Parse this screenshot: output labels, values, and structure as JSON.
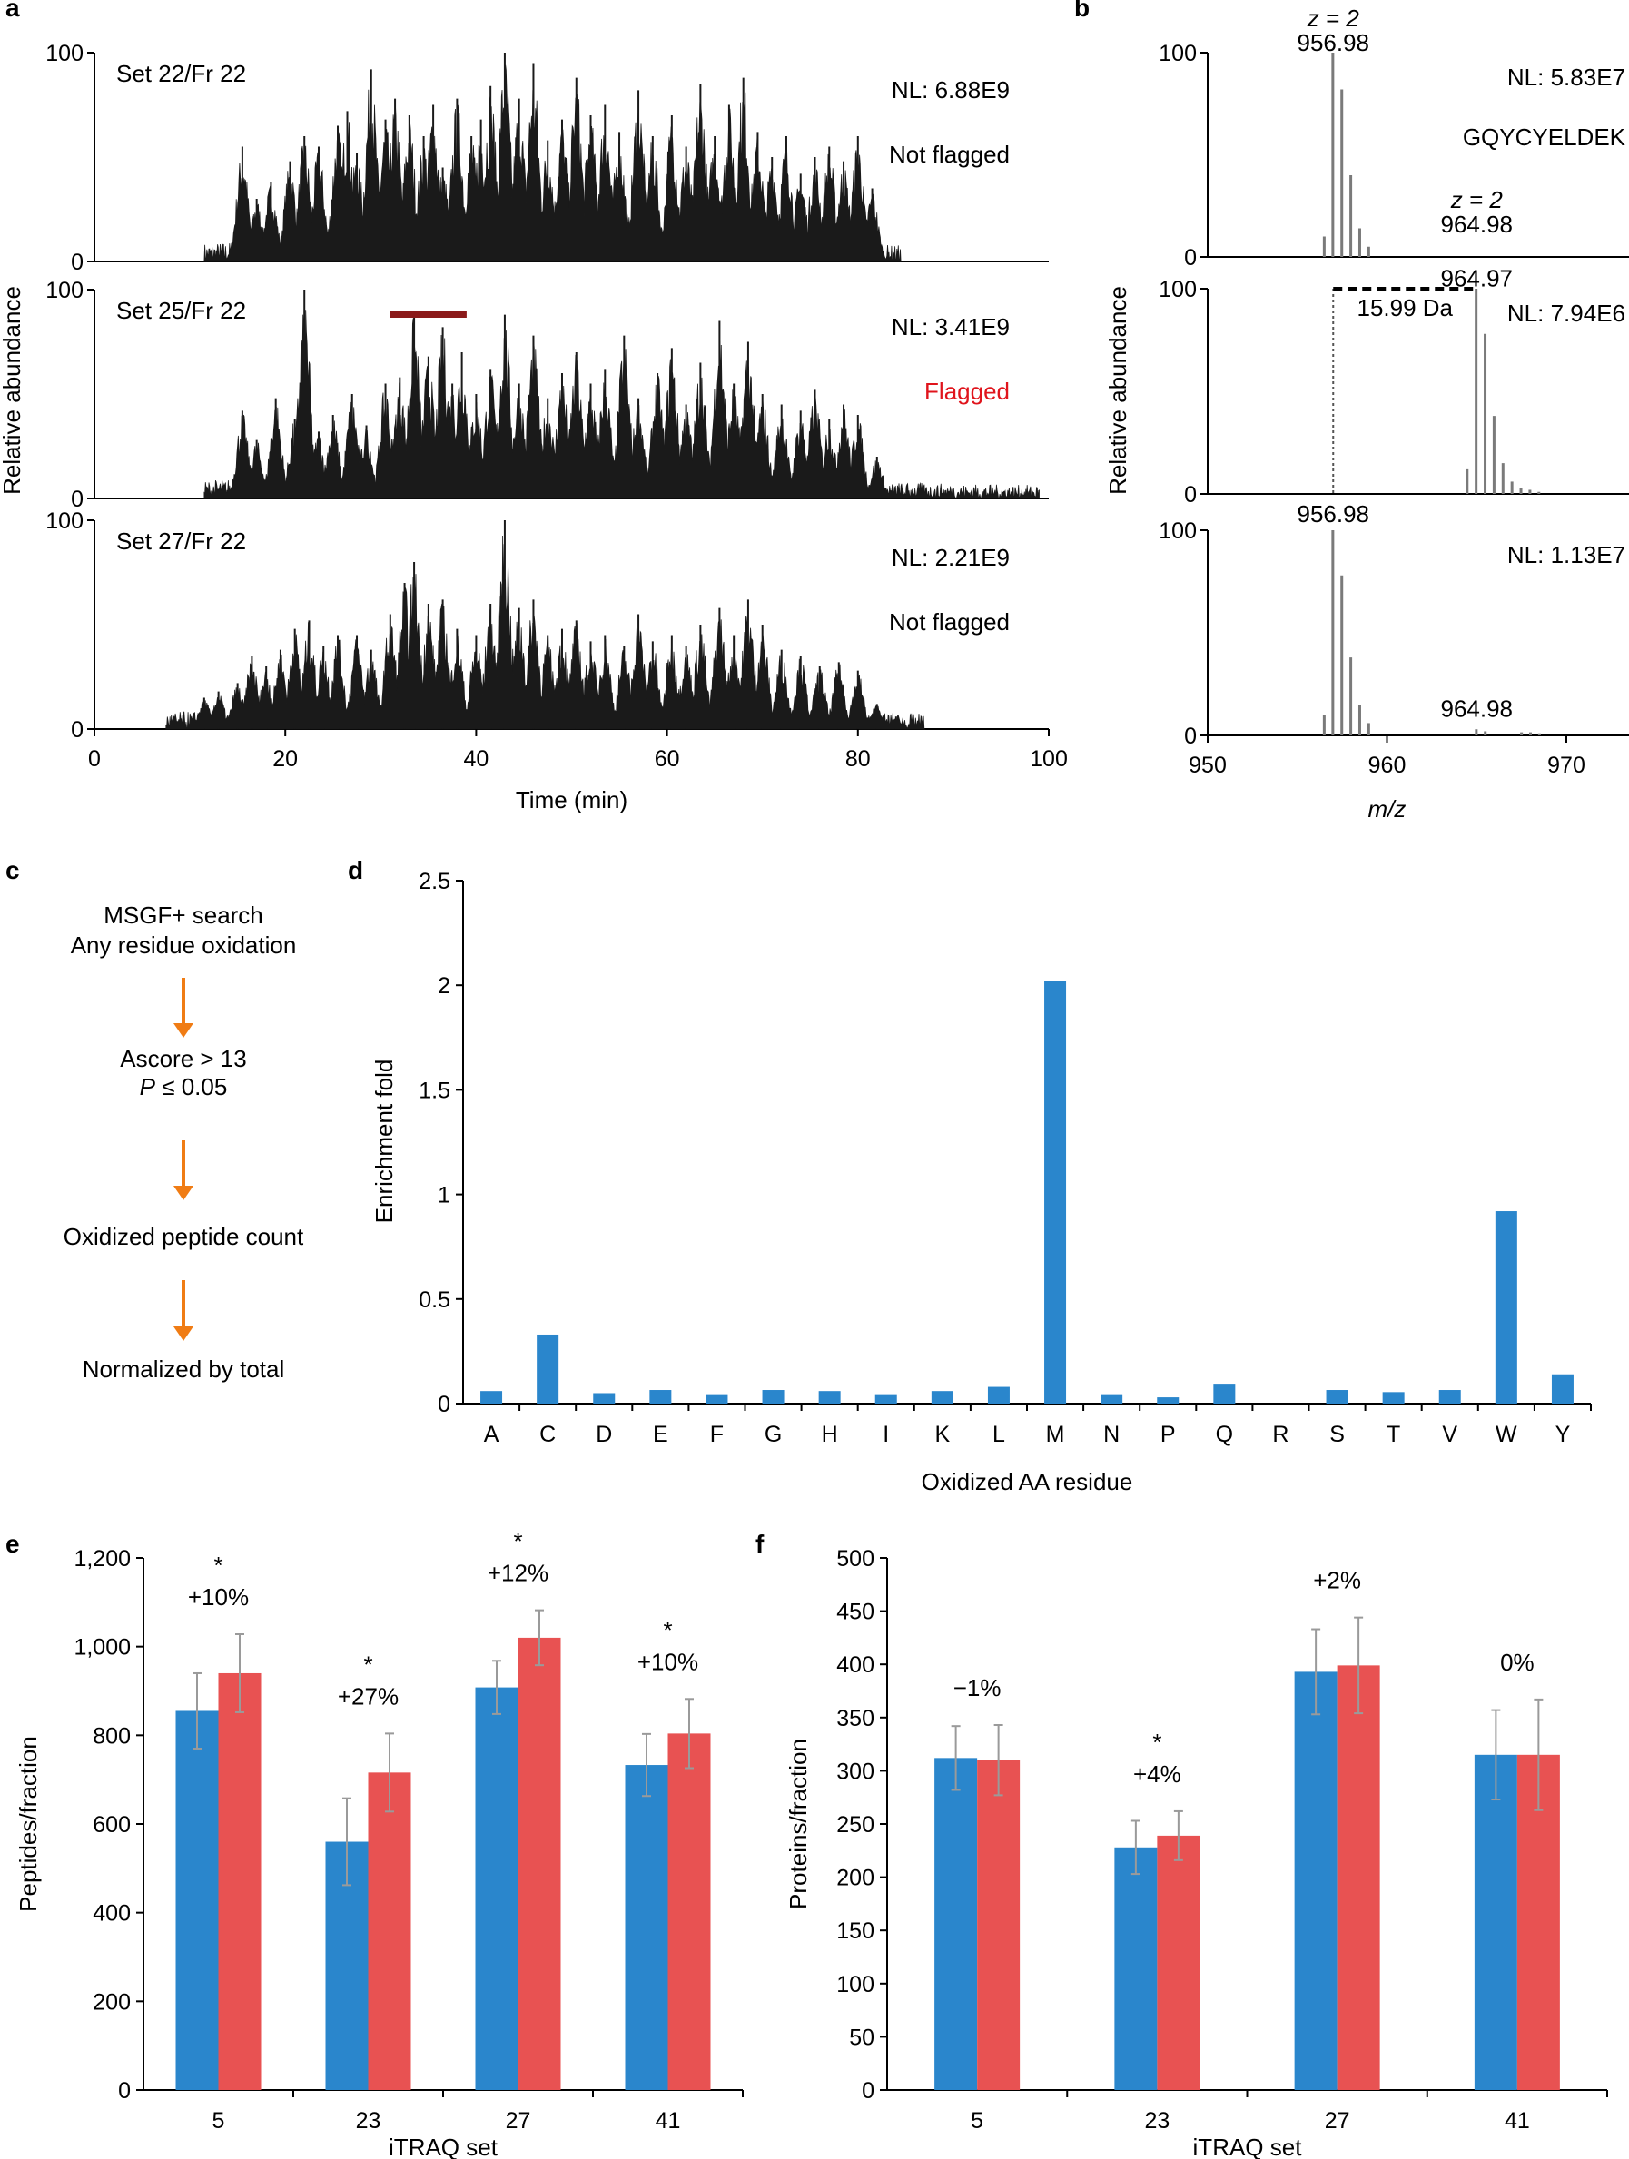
{
  "panels": {
    "a": "a",
    "b": "b",
    "c": "c",
    "d": "d",
    "e": "e",
    "f": "f"
  },
  "colors": {
    "trace": "#1a1a1a",
    "spectrum": "#7a7a7a",
    "flag_bar": "#8b1a1a",
    "flagged_text": "#e0141c",
    "arrow": "#f07c14",
    "blue": "#2a86cc",
    "red": "#e85252",
    "error": "#9a9a9a"
  },
  "chart_data": [
    {
      "id": "a",
      "type": "line",
      "title": "",
      "xlabel": "Time (min)",
      "ylabel": "Relative abundance",
      "xlim": [
        0,
        100
      ],
      "ylim": [
        0,
        100
      ],
      "xticks": [
        "0",
        "20",
        "40",
        "60",
        "80",
        "100"
      ],
      "yticks": [
        "0",
        "100"
      ],
      "traces": [
        {
          "label": "Set 22/Fr 22",
          "nl": "NL: 6.88E9",
          "status": "Not flagged",
          "flagged": false,
          "peaks": [
            [
              15.5,
              55
            ],
            [
              17,
              30
            ],
            [
              18.5,
              38
            ],
            [
              20.5,
              48
            ],
            [
              22,
              60
            ],
            [
              23.5,
              55
            ],
            [
              25.5,
              65
            ],
            [
              26.5,
              72
            ],
            [
              27.5,
              52
            ],
            [
              29,
              92
            ],
            [
              30.5,
              68
            ],
            [
              31.5,
              78
            ],
            [
              33,
              70
            ],
            [
              34.5,
              60
            ],
            [
              35.5,
              75
            ],
            [
              36.5,
              45
            ],
            [
              38,
              78
            ],
            [
              39.5,
              60
            ],
            [
              40.5,
              68
            ],
            [
              41.5,
              84
            ],
            [
              43,
              100
            ],
            [
              44.5,
              78
            ],
            [
              46,
              95
            ],
            [
              47.5,
              58
            ],
            [
              49,
              68
            ],
            [
              50.5,
              88
            ],
            [
              52,
              70
            ],
            [
              53.5,
              75
            ],
            [
              55,
              62
            ],
            [
              57,
              82
            ],
            [
              58.5,
              60
            ],
            [
              60.5,
              70
            ],
            [
              62,
              55
            ],
            [
              63.5,
              85
            ],
            [
              65,
              60
            ],
            [
              66.5,
              75
            ],
            [
              68,
              88
            ],
            [
              69.5,
              62
            ],
            [
              71,
              50
            ],
            [
              72.5,
              60
            ],
            [
              74,
              42
            ],
            [
              75.5,
              50
            ],
            [
              77,
              55
            ],
            [
              78.5,
              48
            ],
            [
              80,
              60
            ],
            [
              81.5,
              35
            ]
          ]
        },
        {
          "label": "Set 25/Fr 22",
          "nl": "NL: 3.41E9",
          "status": "Flagged",
          "flagged": true,
          "flag_range": [
            31,
            39
          ],
          "peaks": [
            [
              15.5,
              42
            ],
            [
              17,
              28
            ],
            [
              19,
              48
            ],
            [
              21,
              38
            ],
            [
              22,
              100
            ],
            [
              23.5,
              32
            ],
            [
              25,
              40
            ],
            [
              27,
              50
            ],
            [
              28.5,
              35
            ],
            [
              30.5,
              55
            ],
            [
              32,
              58
            ],
            [
              33.5,
              88
            ],
            [
              35,
              68
            ],
            [
              36.5,
              82
            ],
            [
              37.5,
              55
            ],
            [
              38.5,
              70
            ],
            [
              40,
              50
            ],
            [
              41.5,
              62
            ],
            [
              43,
              88
            ],
            [
              44.5,
              55
            ],
            [
              46,
              78
            ],
            [
              47.5,
              48
            ],
            [
              49,
              60
            ],
            [
              50.5,
              70
            ],
            [
              52,
              55
            ],
            [
              53.5,
              62
            ],
            [
              55.5,
              78
            ],
            [
              57,
              48
            ],
            [
              59,
              60
            ],
            [
              60.5,
              72
            ],
            [
              62,
              45
            ],
            [
              63.5,
              65
            ],
            [
              65.5,
              85
            ],
            [
              67,
              55
            ],
            [
              68.5,
              75
            ],
            [
              70,
              50
            ],
            [
              72,
              45
            ],
            [
              74,
              42
            ],
            [
              75.5,
              52
            ],
            [
              77,
              38
            ],
            [
              78.5,
              45
            ],
            [
              80,
              40
            ],
            [
              82,
              20
            ],
            [
              96,
              2
            ]
          ]
        },
        {
          "label": "Set 27/Fr 22",
          "nl": "NL: 2.21E9",
          "status": "Not flagged",
          "flagged": false,
          "peaks": [
            [
              11.5,
              15
            ],
            [
              13,
              18
            ],
            [
              15,
              22
            ],
            [
              16.5,
              35
            ],
            [
              18,
              30
            ],
            [
              19.5,
              38
            ],
            [
              21,
              48
            ],
            [
              22.5,
              52
            ],
            [
              24,
              40
            ],
            [
              25.5,
              45
            ],
            [
              27.5,
              45
            ],
            [
              29,
              38
            ],
            [
              31,
              55
            ],
            [
              32.5,
              70
            ],
            [
              33.5,
              80
            ],
            [
              35,
              60
            ],
            [
              36.5,
              62
            ],
            [
              38,
              48
            ],
            [
              40,
              45
            ],
            [
              41.5,
              60
            ],
            [
              43,
              100
            ],
            [
              44.5,
              58
            ],
            [
              46,
              62
            ],
            [
              47.5,
              45
            ],
            [
              49,
              48
            ],
            [
              50.5,
              52
            ],
            [
              52,
              42
            ],
            [
              53.5,
              45
            ],
            [
              55.5,
              40
            ],
            [
              57,
              55
            ],
            [
              58.5,
              42
            ],
            [
              60.5,
              45
            ],
            [
              62,
              40
            ],
            [
              63.5,
              50
            ],
            [
              65.5,
              58
            ],
            [
              67,
              45
            ],
            [
              68.5,
              62
            ],
            [
              70,
              50
            ],
            [
              72,
              38
            ],
            [
              74,
              35
            ],
            [
              76,
              30
            ],
            [
              78,
              32
            ],
            [
              80,
              28
            ],
            [
              82,
              12
            ],
            [
              84,
              6
            ]
          ]
        }
      ]
    },
    {
      "id": "b",
      "type": "bar",
      "title": "",
      "xlabel": "m/z",
      "ylabel": "Relative abundance",
      "xlim": [
        950,
        970
      ],
      "ylim": [
        0,
        100
      ],
      "xticks": [
        "950",
        "960",
        "970"
      ],
      "yticks": [
        "0",
        "100"
      ],
      "peptide": "GQYCYELDEK",
      "delta_label": "15.99 Da",
      "spectra": [
        {
          "nl": "NL: 5.83E7",
          "annotations": [
            {
              "text": "z = 2",
              "x": 957.0,
              "y": 113,
              "italic_z": true
            },
            {
              "text": "956.98",
              "x": 957.0,
              "y": 101
            },
            {
              "text": "z = 2",
              "x": 965.0,
              "y": 24,
              "italic_z": true
            },
            {
              "text": "964.98",
              "x": 965.0,
              "y": 12
            }
          ],
          "peaks": [
            [
              956.5,
              10
            ],
            [
              956.98,
              100
            ],
            [
              957.48,
              82
            ],
            [
              957.98,
              40
            ],
            [
              958.48,
              14
            ],
            [
              958.98,
              5
            ]
          ]
        },
        {
          "nl": "NL: 7.94E6",
          "annotations": [
            {
              "text": "964.97",
              "x": 965.0,
              "y": 101
            }
          ],
          "marker_x": [
            957.0,
            965.0
          ],
          "peaks": [
            [
              964.47,
              12
            ],
            [
              964.97,
              100
            ],
            [
              965.47,
              78
            ],
            [
              965.97,
              38
            ],
            [
              966.47,
              15
            ],
            [
              966.97,
              6
            ],
            [
              967.47,
              3
            ],
            [
              967.97,
              2
            ],
            [
              968.47,
              1
            ]
          ]
        },
        {
          "nl": "NL: 1.13E7",
          "annotations": [
            {
              "text": "956.98",
              "x": 957.0,
              "y": 104
            },
            {
              "text": "964.98",
              "x": 965.0,
              "y": 9
            }
          ],
          "peaks": [
            [
              956.5,
              10
            ],
            [
              956.98,
              100
            ],
            [
              957.48,
              78
            ],
            [
              957.98,
              38
            ],
            [
              958.48,
              15
            ],
            [
              958.98,
              6
            ],
            [
              964.98,
              3
            ],
            [
              965.48,
              2
            ],
            [
              967.5,
              1.5
            ],
            [
              968.0,
              1.5
            ],
            [
              968.5,
              1
            ]
          ]
        }
      ]
    },
    {
      "id": "d",
      "type": "bar",
      "title": "",
      "xlabel": "Oxidized AA residue",
      "ylabel": "Enrichment fold",
      "ylim": [
        0,
        2.5
      ],
      "yticks": [
        "0",
        "0.5",
        "1",
        "1.5",
        "2",
        "2.5"
      ],
      "categories": [
        "A",
        "C",
        "D",
        "E",
        "F",
        "G",
        "H",
        "I",
        "K",
        "L",
        "M",
        "N",
        "P",
        "Q",
        "R",
        "S",
        "T",
        "V",
        "W",
        "Y"
      ],
      "values": [
        0.06,
        0.33,
        0.05,
        0.065,
        0.045,
        0.065,
        0.06,
        0.045,
        0.06,
        0.08,
        2.02,
        0.045,
        0.03,
        0.095,
        0.0,
        0.065,
        0.055,
        0.065,
        0.92,
        0.14
      ]
    },
    {
      "id": "e",
      "type": "bar",
      "title": "",
      "xlabel": "iTRAQ set",
      "ylabel": "Peptides/fraction",
      "ylim": [
        0,
        1200
      ],
      "yticks": [
        "0",
        "200",
        "400",
        "600",
        "800",
        "1,000",
        "1,200"
      ],
      "categories": [
        "5",
        "23",
        "27",
        "41"
      ],
      "series": [
        {
          "name": "blue",
          "values": [
            855,
            560,
            908,
            733
          ],
          "errors": [
            85,
            98,
            60,
            70
          ]
        },
        {
          "name": "red",
          "values": [
            940,
            716,
            1020,
            804
          ],
          "errors": [
            88,
            88,
            62,
            78
          ]
        }
      ],
      "annotations": [
        {
          "star": "*",
          "text": "+10%"
        },
        {
          "star": "*",
          "text": "+27%"
        },
        {
          "star": "*",
          "text": "+12%"
        },
        {
          "star": "*",
          "text": "+10%"
        }
      ]
    },
    {
      "id": "f",
      "type": "bar",
      "title": "",
      "xlabel": "iTRAQ set",
      "ylabel": "Proteins/fraction",
      "ylim": [
        0,
        500
      ],
      "yticks": [
        "0",
        "50",
        "100",
        "150",
        "200",
        "250",
        "300",
        "350",
        "400",
        "450",
        "500"
      ],
      "categories": [
        "5",
        "23",
        "27",
        "41"
      ],
      "series": [
        {
          "name": "blue",
          "values": [
            312,
            228,
            393,
            315
          ],
          "errors": [
            30,
            25,
            40,
            42
          ]
        },
        {
          "name": "red",
          "values": [
            310,
            239,
            399,
            315
          ],
          "errors": [
            33,
            23,
            45,
            52
          ]
        }
      ],
      "annotations": [
        {
          "star": "",
          "text": "−1%"
        },
        {
          "star": "*",
          "text": "+4%"
        },
        {
          "star": "",
          "text": "+2%"
        },
        {
          "star": "",
          "text": "0%"
        }
      ]
    }
  ],
  "flowchart": {
    "steps": [
      [
        "MSGF+ search",
        "Any residue oxidation"
      ],
      [
        "Ascore > 13",
        "P ≤ 0.05"
      ],
      [
        "Oxidized peptide count"
      ],
      [
        "Normalized by total"
      ]
    ]
  }
}
